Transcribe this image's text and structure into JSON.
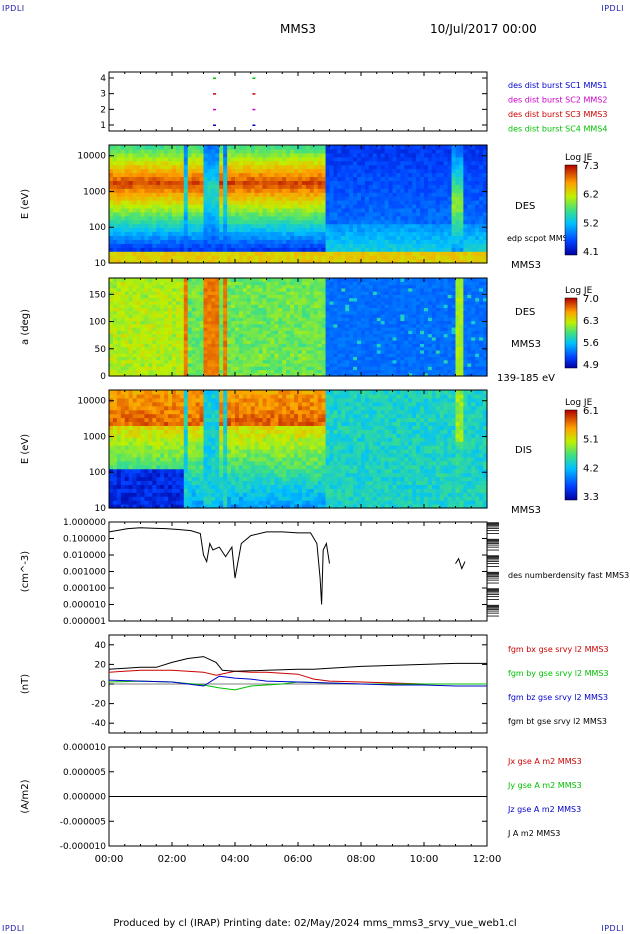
{
  "corner_label": "IPDLI",
  "header": {
    "spacecraft": "MMS3",
    "datetime": "10/Jul/2017 00:00"
  },
  "footer": "Produced by cl (IRAP)   Printing date: 02/May/2024   mms_mms3_srvy_vue_web1.cl",
  "colors": {
    "red": "#cc0000",
    "green": "#00c000",
    "blue": "#0000cc",
    "magenta": "#cc00cc",
    "black": "#000000"
  },
  "x_ticks": [
    "00:00",
    "02:00",
    "04:00",
    "06:00",
    "08:00",
    "10:00",
    "12:00"
  ],
  "chart_data": [
    {
      "id": "burst",
      "type": "scatter",
      "ylim": [
        1,
        4
      ],
      "yticks": [
        "1",
        "2",
        "3",
        "4"
      ],
      "legend": [
        {
          "name": "des dist burst SC1 MMS1",
          "color": "#0000cc"
        },
        {
          "name": "des dist burst SC2 MMS2",
          "color": "#cc00cc"
        },
        {
          "name": "des dist burst SC3 MMS3",
          "color": "#cc0000"
        },
        {
          "name": "des dist burst SC4 MMS4",
          "color": "#00c000"
        }
      ],
      "series": [
        {
          "name": "des dist burst SC1 MMS1",
          "color": "#0000cc",
          "y": 1,
          "x": [
            3.35,
            4.6
          ]
        },
        {
          "name": "des dist burst SC2 MMS2",
          "color": "#cc00cc",
          "y": 2,
          "x": [
            3.35,
            4.6
          ]
        },
        {
          "name": "des dist burst SC3 MMS3",
          "color": "#cc0000",
          "y": 3,
          "x": [
            3.35,
            4.6
          ]
        },
        {
          "name": "des dist burst SC4 MMS4",
          "color": "#00c000",
          "y": 4,
          "x": [
            3.35,
            4.6
          ]
        }
      ]
    },
    {
      "id": "des_e",
      "type": "heatmap",
      "ylabel": "E (eV)",
      "yticks": [
        "10",
        "100",
        "1000",
        "10000"
      ],
      "label": "DES",
      "sublabel": "MMS3",
      "overlay": "edp scpot MMS3",
      "colorbar": {
        "title": "Log JE",
        "ticks": [
          "7.3",
          "6.2",
          "5.2",
          "4.1"
        ]
      }
    },
    {
      "id": "des_pa",
      "type": "heatmap",
      "ylabel": "a (deg)",
      "yticks": [
        "0",
        "50",
        "100",
        "150"
      ],
      "label": "DES",
      "sublabel": "MMS3",
      "energy_range": "139-185 eV",
      "colorbar": {
        "title": "Log JE",
        "ticks": [
          "7.0",
          "6.3",
          "5.6",
          "4.9"
        ]
      }
    },
    {
      "id": "dis_e",
      "type": "heatmap",
      "ylabel": "E (eV)",
      "yticks": [
        "10",
        "100",
        "1000",
        "10000"
      ],
      "label": "DIS",
      "sublabel": "MMS3",
      "colorbar": {
        "title": "Log JE",
        "ticks": [
          "6.1",
          "5.1",
          "4.2",
          "3.3"
        ]
      }
    },
    {
      "id": "density",
      "type": "line",
      "ylabel": "(cm^-3)",
      "yscale": "log",
      "yticks": [
        "1.000000",
        "0.100000",
        "0.010000",
        "0.001000",
        "0.000100",
        "0.000010",
        "0.000001"
      ],
      "series": [
        {
          "name": "des numberdensity fast MMS3",
          "color": "#000000",
          "x": [
            0,
            0.3,
            0.6,
            1.0,
            1.4,
            1.8,
            2.2,
            2.6,
            2.9,
            3.0,
            3.1,
            3.2,
            3.3,
            3.5,
            3.7,
            3.9,
            4.0,
            4.2,
            4.5,
            5.0,
            5.5,
            6.0,
            6.4,
            6.6,
            6.7,
            6.75,
            6.8,
            6.9,
            7.0,
            11.0,
            11.1,
            11.2,
            11.3
          ],
          "y": [
            0.25,
            0.32,
            0.4,
            0.45,
            0.42,
            0.4,
            0.35,
            0.3,
            0.2,
            0.01,
            0.004,
            0.05,
            0.02,
            0.03,
            0.008,
            0.03,
            0.0004,
            0.05,
            0.15,
            0.25,
            0.25,
            0.22,
            0.22,
            0.05,
            0.0004,
            1e-05,
            0.02,
            0.05,
            0.003,
            0.003,
            0.006,
            0.0015,
            0.004
          ]
        }
      ]
    },
    {
      "id": "bfield",
      "type": "line",
      "ylabel": "(nT)",
      "ylim": [
        -50,
        50
      ],
      "yticks": [
        "40",
        "20",
        "0",
        "-20",
        "-40"
      ],
      "series": [
        {
          "name": "fgm bx gse srvy l2 MMS3",
          "color": "#cc0000",
          "x": [
            0,
            1,
            2,
            3,
            3.4,
            4,
            4.5,
            5,
            5.5,
            6,
            6.5,
            7,
            8,
            9,
            10,
            11,
            12
          ],
          "y": [
            12,
            14,
            14,
            12,
            9,
            13,
            12,
            12,
            11,
            10,
            5,
            3,
            2,
            1,
            0,
            0,
            0
          ]
        },
        {
          "name": "fgm by gse srvy l2 MMS3",
          "color": "#00c000",
          "x": [
            0,
            1,
            2,
            3,
            3.5,
            4,
            4.5,
            5,
            5.5,
            6,
            7,
            8,
            9,
            10,
            11,
            12
          ],
          "y": [
            2,
            3,
            2,
            -1,
            -4,
            -6,
            -2,
            -1,
            0,
            2,
            1,
            0,
            0,
            0,
            0,
            0
          ]
        },
        {
          "name": "fgm bz gse srvy l2 MMS3",
          "color": "#0000cc",
          "x": [
            0,
            1,
            2,
            3,
            3.5,
            4,
            4.5,
            5,
            6,
            7,
            8,
            9,
            10,
            11,
            12
          ],
          "y": [
            4,
            3,
            2,
            -2,
            8,
            6,
            5,
            3,
            2,
            1,
            0,
            -1,
            -1,
            -2,
            -2
          ]
        },
        {
          "name": "fgm bt gse srvy l2 MMS3",
          "color": "#000000",
          "x": [
            0,
            0.5,
            1,
            1.5,
            2,
            2.5,
            3,
            3.4,
            3.6,
            4,
            5,
            6,
            6.5,
            7,
            8,
            9,
            10,
            11,
            12
          ],
          "y": [
            15,
            16,
            17,
            17,
            22,
            26,
            28,
            22,
            14,
            13,
            14,
            15,
            15,
            16,
            18,
            19,
            20,
            21,
            21
          ]
        }
      ]
    },
    {
      "id": "current",
      "type": "line",
      "ylabel": "(A/m2)",
      "ylim": [
        -1e-05,
        1e-05
      ],
      "yticks": [
        "0.000010",
        "0.000005",
        "0.000000",
        "-0.000005",
        "-0.000010"
      ],
      "series": [
        {
          "name": "Jx gse A m2 MMS3",
          "color": "#cc0000",
          "x": [
            0,
            7,
            12
          ],
          "y": [
            0,
            0,
            0
          ]
        },
        {
          "name": "Jy gse A m2 MMS3",
          "color": "#00c000",
          "x": [
            0,
            7,
            12
          ],
          "y": [
            0,
            0,
            0
          ]
        },
        {
          "name": "Jz gse A m2 MMS3",
          "color": "#0000cc",
          "x": [
            0,
            7,
            12
          ],
          "y": [
            0,
            0,
            0
          ]
        },
        {
          "name": "J A m2 MMS3",
          "color": "#000000",
          "x": [
            0,
            7,
            12
          ],
          "y": [
            0,
            0,
            0
          ]
        }
      ]
    }
  ]
}
